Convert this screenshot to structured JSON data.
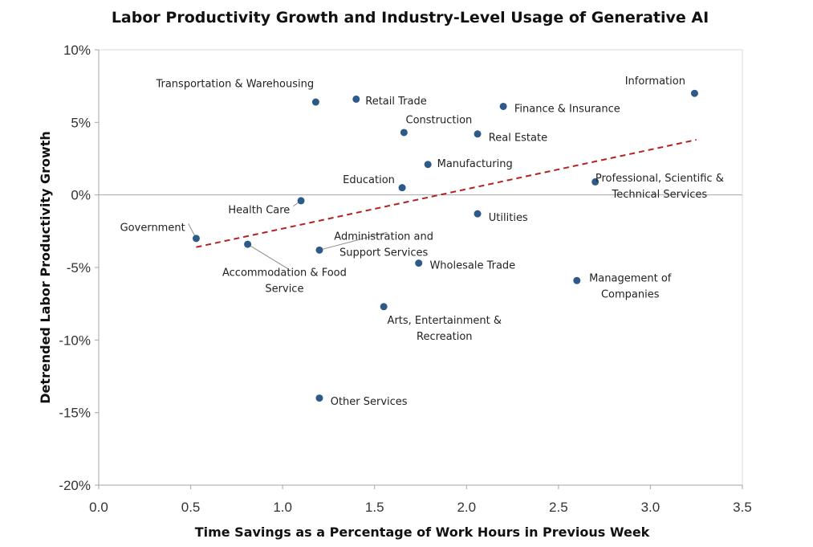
{
  "chart_data": {
    "type": "scatter",
    "title": "Labor Productivity Growth and Industry-Level Usage of Generative AI",
    "xlabel": "Time Savings as a Percentage of Work Hours in Previous Week",
    "ylabel": "Detrended Labor Productivity  Growth",
    "xlim": [
      0.0,
      3.5
    ],
    "ylim": [
      -20,
      10
    ],
    "xticks": [
      0.0,
      0.5,
      1.0,
      1.5,
      2.0,
      2.5,
      3.0,
      3.5
    ],
    "xtick_labels": [
      "0.0",
      "0.5",
      "1.0",
      "1.5",
      "2.0",
      "2.5",
      "3.0",
      "3.5"
    ],
    "yticks": [
      10,
      5,
      0,
      -5,
      -10,
      -15,
      -20
    ],
    "ytick_labels": [
      "10%",
      "5%",
      "0%",
      "-5%",
      "-10%",
      "-15%",
      "-20%"
    ],
    "grid": false,
    "marker_color": "#2e5a88",
    "trend_color": "#b22222",
    "trend_line": {
      "x": [
        0.53,
        3.25
      ],
      "y": [
        -3.6,
        3.8
      ],
      "style": "dashed"
    },
    "points": [
      {
        "label": [
          "Transportation & Warehousing"
        ],
        "x": 1.18,
        "y": 6.4,
        "lx": 1.17,
        "ly": 7.7,
        "anchor": "end",
        "leader": false
      },
      {
        "label": [
          "Retail Trade"
        ],
        "x": 1.4,
        "y": 6.6,
        "lx": 1.45,
        "ly": 6.5,
        "anchor": "start",
        "leader": false
      },
      {
        "label": [
          "Information"
        ],
        "x": 3.24,
        "y": 7.0,
        "lx": 3.19,
        "ly": 7.9,
        "anchor": "end",
        "leader": false
      },
      {
        "label": [
          "Finance & Insurance"
        ],
        "x": 2.2,
        "y": 6.1,
        "lx": 2.26,
        "ly": 6.0,
        "anchor": "start",
        "leader": false
      },
      {
        "label": [
          "Construction"
        ],
        "x": 1.66,
        "y": 4.3,
        "lx": 1.85,
        "ly": 5.2,
        "anchor": "middle",
        "leader": false
      },
      {
        "label": [
          "Real Estate"
        ],
        "x": 2.06,
        "y": 4.2,
        "lx": 2.12,
        "ly": 4.0,
        "anchor": "start",
        "leader": false
      },
      {
        "label": [
          "Manufacturing"
        ],
        "x": 1.79,
        "y": 2.1,
        "lx": 1.84,
        "ly": 2.2,
        "anchor": "start",
        "leader": false
      },
      {
        "label": [
          "Education"
        ],
        "x": 1.65,
        "y": 0.5,
        "lx": 1.61,
        "ly": 1.1,
        "anchor": "end",
        "leader": false
      },
      {
        "label": [
          "Professional, Scientific &",
          "Technical Services"
        ],
        "x": 2.7,
        "y": 0.9,
        "lx": 3.05,
        "ly": 1.2,
        "anchor": "middle",
        "leader": false
      },
      {
        "label": [
          "Health Care"
        ],
        "x": 1.1,
        "y": -0.4,
        "lx": 1.04,
        "ly": -1.0,
        "anchor": "end",
        "leader": true
      },
      {
        "label": [
          "Utilities"
        ],
        "x": 2.06,
        "y": -1.3,
        "lx": 2.12,
        "ly": -1.5,
        "anchor": "start",
        "leader": false
      },
      {
        "label": [
          "Government"
        ],
        "x": 0.53,
        "y": -3.0,
        "lx": 0.47,
        "ly": -2.2,
        "anchor": "end",
        "leader": true
      },
      {
        "label": [
          "Accommodation  & Food",
          "Service"
        ],
        "x": 0.81,
        "y": -3.4,
        "lx": 1.01,
        "ly": -5.3,
        "anchor": "middle",
        "leader": true
      },
      {
        "label": [
          "Administration and",
          "Support Services"
        ],
        "x": 1.2,
        "y": -3.8,
        "lx": 1.55,
        "ly": -2.8,
        "anchor": "middle",
        "leader": true
      },
      {
        "label": [
          "Wholesale Trade"
        ],
        "x": 1.74,
        "y": -4.7,
        "lx": 1.8,
        "ly": -4.8,
        "anchor": "start",
        "leader": false
      },
      {
        "label": [
          "Management of",
          "Companies"
        ],
        "x": 2.6,
        "y": -5.9,
        "lx": 2.89,
        "ly": -5.7,
        "anchor": "middle",
        "leader": false
      },
      {
        "label": [
          "Arts, Entertainment &",
          "Recreation"
        ],
        "x": 1.55,
        "y": -7.7,
        "lx": 1.88,
        "ly": -8.6,
        "anchor": "middle",
        "leader": false
      },
      {
        "label": [
          "Other Services"
        ],
        "x": 1.2,
        "y": -14.0,
        "lx": 1.26,
        "ly": -14.2,
        "anchor": "start",
        "leader": false
      }
    ]
  }
}
